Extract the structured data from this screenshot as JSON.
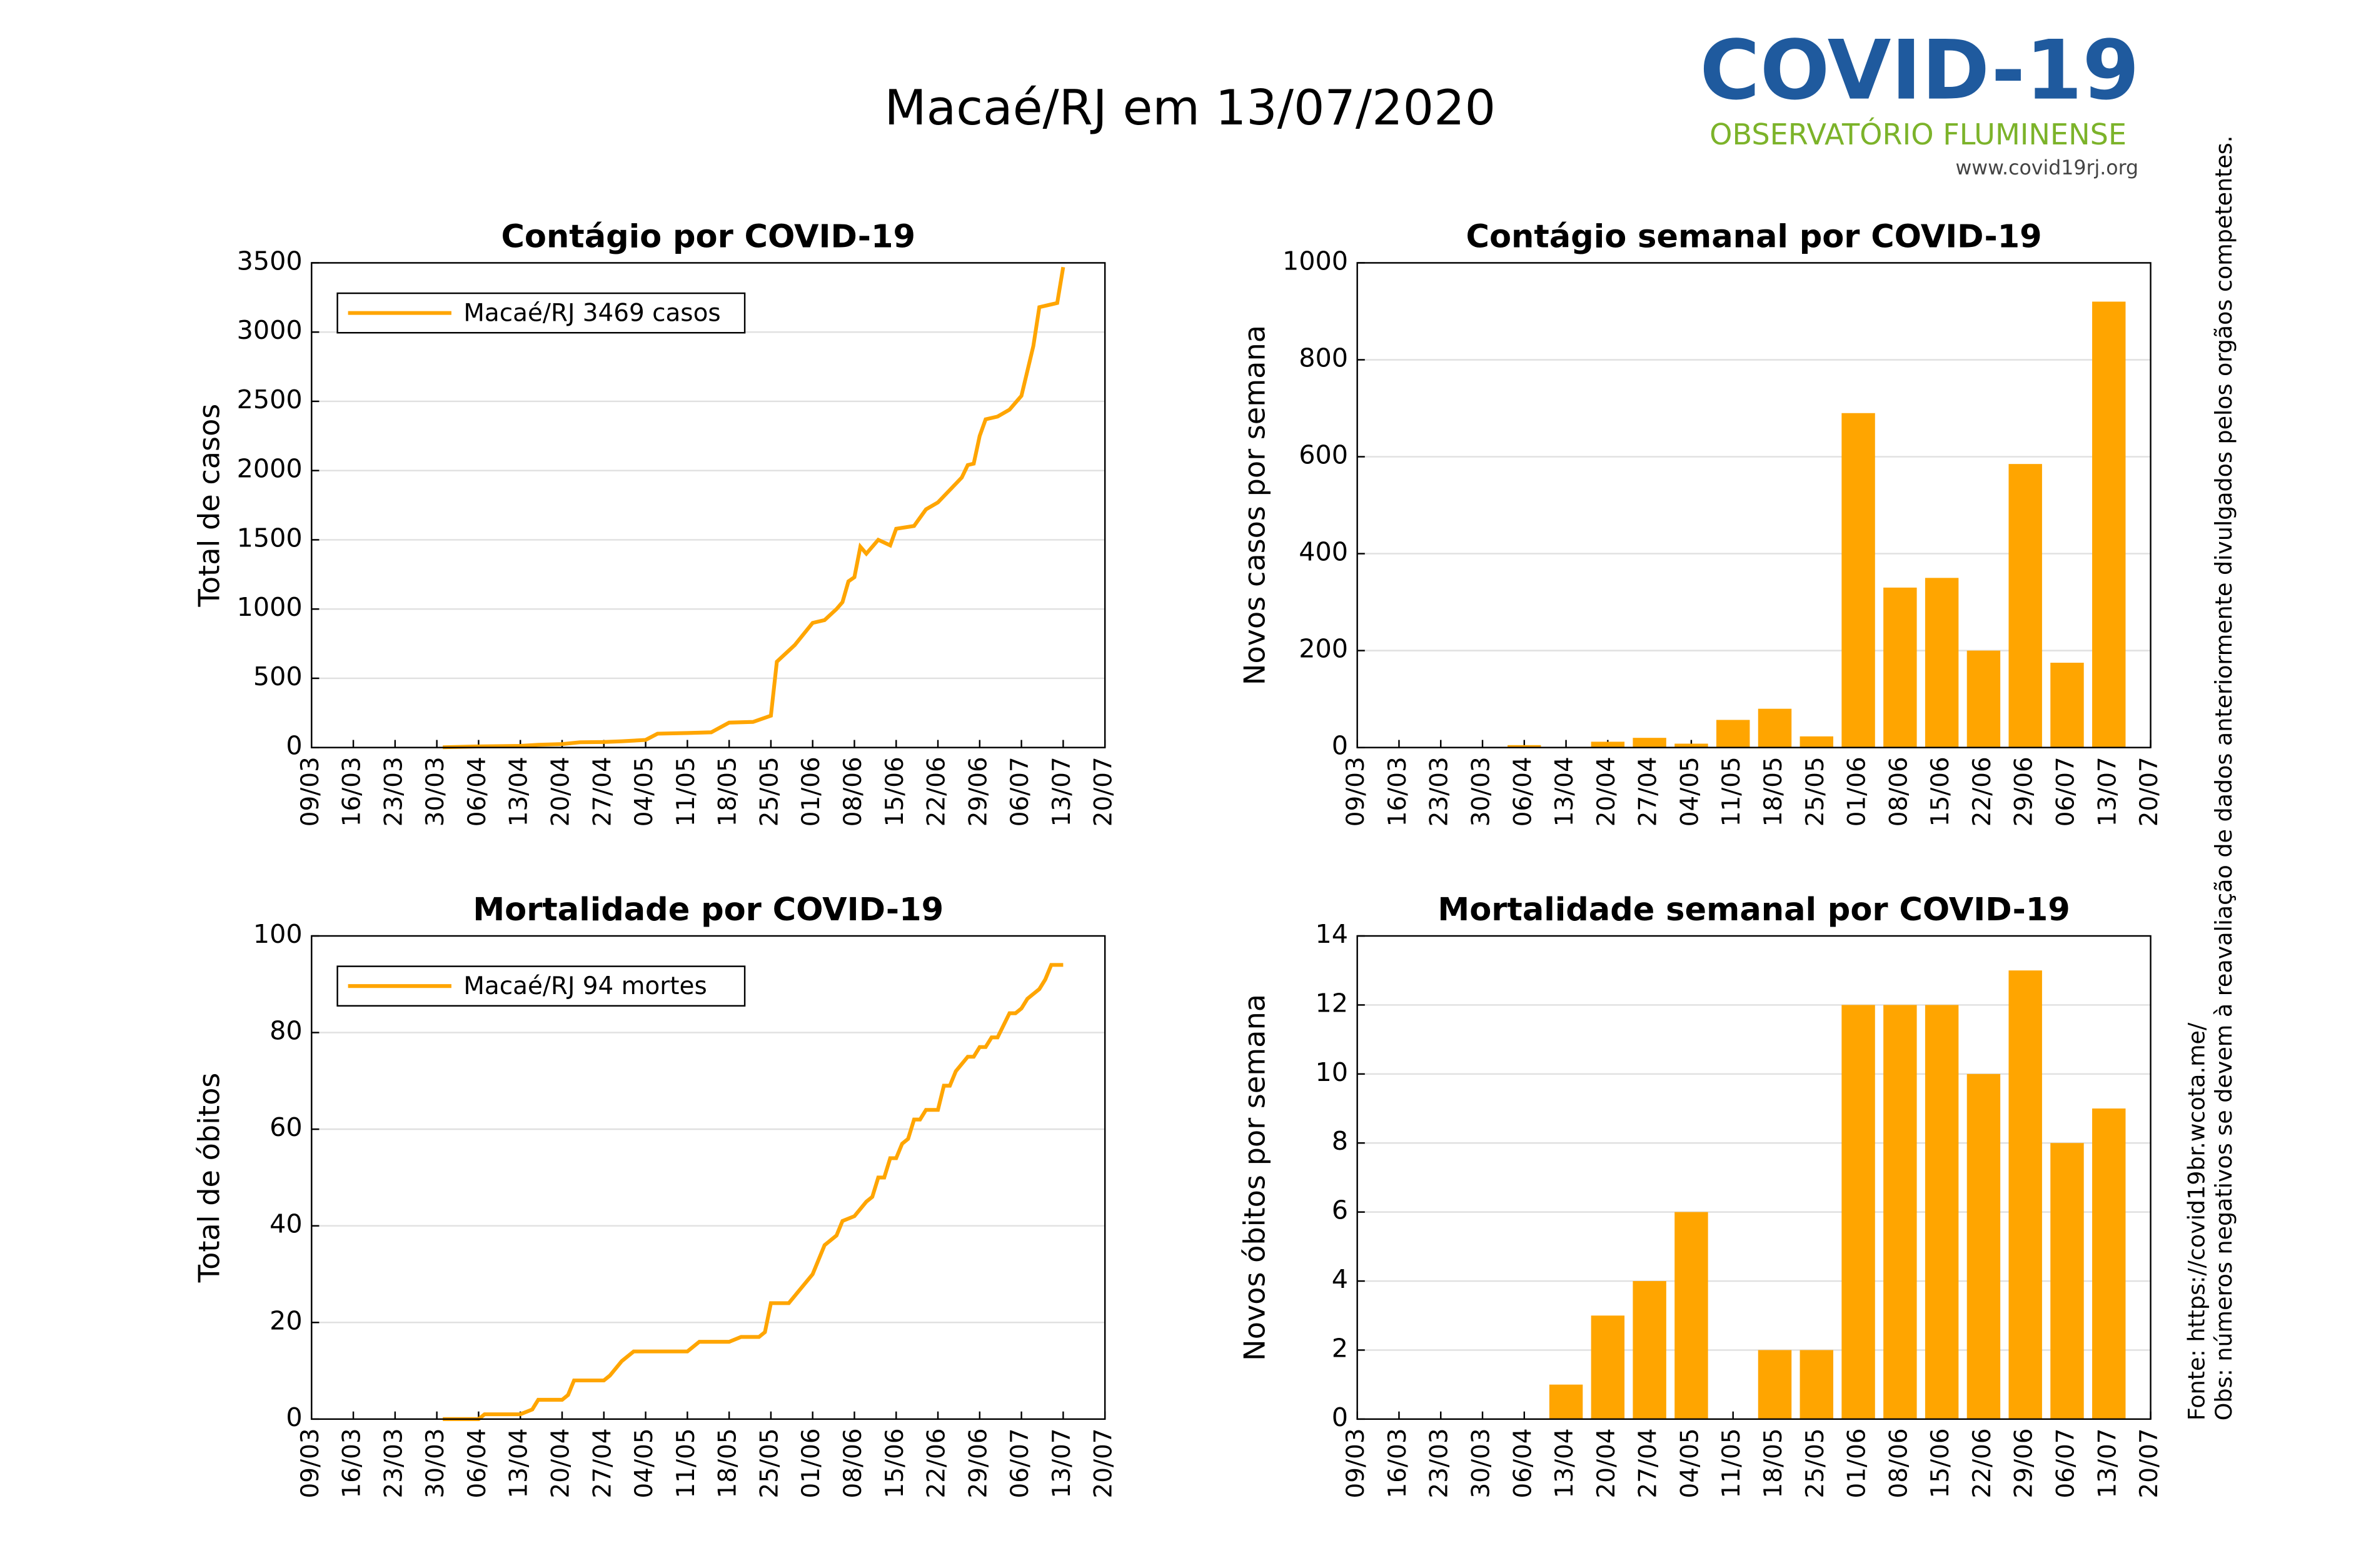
{
  "title": "Macaé/RJ em 13/07/2020",
  "logo": {
    "name": "COVID-19",
    "subtitle": "OBSERVATÓRIO FLUMINENSE",
    "url": "www.covid19rj.org"
  },
  "notes": [
    "Fonte: https://covid19br.wcota.me/",
    "Obs: números negativos se devem à reavaliação de dados anteriormente divulgados pelos orgãos competentes."
  ],
  "chart_data": [
    {
      "type": "line",
      "title": "Contágio por COVID-19",
      "ylabel": "Total de casos",
      "x": [
        "31/03",
        "06/04",
        "13/04",
        "16/04",
        "20/04",
        "23/04",
        "27/04",
        "30/04",
        "04/05",
        "06/05",
        "11/05",
        "15/05",
        "18/05",
        "22/05",
        "25/05",
        "26/05",
        "29/05",
        "01/06",
        "03/06",
        "05/06",
        "06/06",
        "07/06",
        "08/06",
        "09/06",
        "10/06",
        "12/06",
        "14/06",
        "15/06",
        "18/06",
        "20/06",
        "22/06",
        "24/06",
        "26/06",
        "27/06",
        "28/06",
        "29/06",
        "30/06",
        "02/07",
        "04/07",
        "06/07",
        "08/07",
        "09/07",
        "11/07",
        "12/07",
        "13/07"
      ],
      "series": [
        {
          "name": "Macaé/RJ  3469 casos",
          "color": "#ffa500",
          "values": [
            2,
            8,
            12,
            20,
            25,
            38,
            40,
            45,
            55,
            100,
            105,
            110,
            180,
            185,
            230,
            620,
            740,
            900,
            920,
            1000,
            1050,
            1200,
            1230,
            1450,
            1400,
            1500,
            1460,
            1580,
            1600,
            1720,
            1770,
            1860,
            1950,
            2040,
            2050,
            2250,
            2370,
            2390,
            2440,
            2540,
            2900,
            3180,
            3200,
            3210,
            3469
          ]
        }
      ],
      "xlim": [
        "09/03",
        "20/07"
      ],
      "xticks": [
        "09/03",
        "16/03",
        "23/03",
        "30/03",
        "06/04",
        "13/04",
        "20/04",
        "27/04",
        "04/05",
        "11/05",
        "18/05",
        "25/05",
        "01/06",
        "08/06",
        "15/06",
        "22/06",
        "29/06",
        "06/07",
        "13/07",
        "20/07"
      ],
      "ylim": [
        0,
        3500
      ],
      "yticks": [
        0,
        500,
        1000,
        1500,
        2000,
        2500,
        3000,
        3500
      ],
      "grid": true,
      "legend": "upper-left"
    },
    {
      "type": "bar",
      "title": "Contágio semanal por COVID-19",
      "ylabel": "Novos casos por semana",
      "color": "#ffa500",
      "x": [
        "09/03",
        "16/03",
        "23/03",
        "30/03",
        "06/04",
        "13/04",
        "20/04",
        "27/04",
        "04/05",
        "11/05",
        "18/05",
        "25/05",
        "01/06",
        "08/06",
        "15/06",
        "22/06",
        "29/06",
        "06/07",
        "13/07"
      ],
      "values": [
        0,
        0,
        0,
        0,
        5,
        0,
        12,
        20,
        8,
        57,
        80,
        23,
        690,
        330,
        350,
        200,
        585,
        175,
        920
      ],
      "xlim": [
        "09/03",
        "20/07"
      ],
      "xticks": [
        "09/03",
        "16/03",
        "23/03",
        "30/03",
        "06/04",
        "13/04",
        "20/04",
        "27/04",
        "04/05",
        "11/05",
        "18/05",
        "25/05",
        "01/06",
        "08/06",
        "15/06",
        "22/06",
        "29/06",
        "06/07",
        "13/07",
        "20/07"
      ],
      "ylim": [
        0,
        1000
      ],
      "yticks": [
        0,
        200,
        400,
        600,
        800,
        1000
      ],
      "grid": true
    },
    {
      "type": "line",
      "title": "Mortalidade por COVID-19",
      "ylabel": "Total de óbitos",
      "x": [
        "31/03",
        "06/04",
        "07/04",
        "13/04",
        "15/04",
        "16/04",
        "20/04",
        "21/04",
        "22/04",
        "27/04",
        "28/04",
        "30/04",
        "02/05",
        "11/05",
        "13/05",
        "18/05",
        "20/05",
        "23/05",
        "24/05",
        "25/05",
        "28/05",
        "30/05",
        "01/06",
        "03/06",
        "05/06",
        "06/06",
        "08/06",
        "10/06",
        "11/06",
        "12/06",
        "13/06",
        "14/06",
        "15/06",
        "16/06",
        "17/06",
        "18/06",
        "19/06",
        "20/06",
        "22/06",
        "23/06",
        "24/06",
        "25/06",
        "27/06",
        "28/06",
        "29/06",
        "30/06",
        "01/07",
        "02/07",
        "04/07",
        "05/07",
        "06/07",
        "07/07",
        "09/07",
        "10/07",
        "11/07",
        "13/07"
      ],
      "series": [
        {
          "name": "Macaé/RJ  94 mortes",
          "color": "#ffa500",
          "values": [
            0,
            0,
            1,
            1,
            2,
            4,
            4,
            5,
            8,
            8,
            9,
            12,
            14,
            14,
            16,
            16,
            17,
            17,
            18,
            24,
            24,
            27,
            30,
            36,
            38,
            41,
            42,
            45,
            46,
            50,
            50,
            54,
            54,
            57,
            58,
            62,
            62,
            64,
            64,
            69,
            69,
            72,
            75,
            75,
            77,
            77,
            79,
            79,
            84,
            84,
            85,
            87,
            89,
            91,
            94,
            94
          ]
        }
      ],
      "xlim": [
        "09/03",
        "20/07"
      ],
      "xticks": [
        "09/03",
        "16/03",
        "23/03",
        "30/03",
        "06/04",
        "13/04",
        "20/04",
        "27/04",
        "04/05",
        "11/05",
        "18/05",
        "25/05",
        "01/06",
        "08/06",
        "15/06",
        "22/06",
        "29/06",
        "06/07",
        "13/07",
        "20/07"
      ],
      "ylim": [
        0,
        100
      ],
      "yticks": [
        0,
        20,
        40,
        60,
        80,
        100
      ],
      "grid": true,
      "legend": "upper-left"
    },
    {
      "type": "bar",
      "title": "Mortalidade semanal por COVID-19",
      "ylabel": "Novos óbitos por semana",
      "color": "#ffa500",
      "x": [
        "09/03",
        "16/03",
        "23/03",
        "30/03",
        "06/04",
        "13/04",
        "20/04",
        "27/04",
        "04/05",
        "11/05",
        "18/05",
        "25/05",
        "01/06",
        "08/06",
        "15/06",
        "22/06",
        "29/06",
        "06/07",
        "13/07"
      ],
      "values": [
        0,
        0,
        0,
        0,
        0,
        1,
        3,
        4,
        6,
        0,
        2,
        2,
        12,
        12,
        12,
        10,
        13,
        8,
        9
      ],
      "xlim": [
        "09/03",
        "20/07"
      ],
      "xticks": [
        "09/03",
        "16/03",
        "23/03",
        "30/03",
        "06/04",
        "13/04",
        "20/04",
        "27/04",
        "04/05",
        "11/05",
        "18/05",
        "25/05",
        "01/06",
        "08/06",
        "15/06",
        "22/06",
        "29/06",
        "06/07",
        "13/07",
        "20/07"
      ],
      "ylim": [
        0,
        14
      ],
      "yticks": [
        0,
        2,
        4,
        6,
        8,
        10,
        12,
        14
      ],
      "grid": true
    }
  ]
}
